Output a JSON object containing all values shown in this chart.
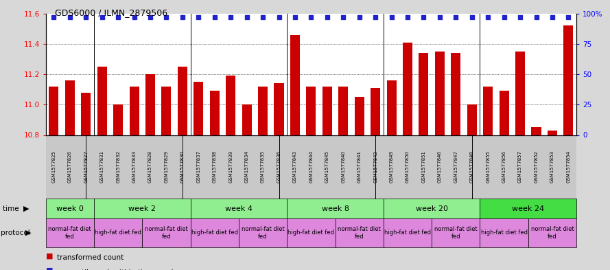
{
  "title": "GDS6000 / ILMN_2879506",
  "samples": [
    "GSM1577825",
    "GSM1577826",
    "GSM1577827",
    "GSM1577831",
    "GSM1577832",
    "GSM1577833",
    "GSM1577828",
    "GSM1577829",
    "GSM1577830",
    "GSM1577837",
    "GSM1577838",
    "GSM1577839",
    "GSM1577834",
    "GSM1577835",
    "GSM1577836",
    "GSM1577843",
    "GSM1577844",
    "GSM1577845",
    "GSM1577840",
    "GSM1577841",
    "GSM1577842",
    "GSM1577849",
    "GSM1577850",
    "GSM1577851",
    "GSM1577846",
    "GSM1577847",
    "GSM1577848",
    "GSM1577855",
    "GSM1577856",
    "GSM1577857",
    "GSM1577852",
    "GSM1577853",
    "GSM1577854"
  ],
  "values": [
    11.12,
    11.16,
    11.08,
    11.25,
    11.0,
    11.12,
    11.2,
    11.12,
    11.25,
    11.15,
    11.09,
    11.19,
    11.0,
    11.12,
    11.14,
    11.46,
    11.12,
    11.12,
    11.12,
    11.05,
    11.11,
    11.16,
    11.41,
    11.34,
    11.35,
    11.34,
    11.0,
    11.12,
    11.09,
    11.35,
    10.85,
    10.83,
    11.52
  ],
  "ylim_left": [
    10.8,
    11.6
  ],
  "ylim_right": [
    0,
    100
  ],
  "yticks_left": [
    10.8,
    11.0,
    11.2,
    11.4,
    11.6
  ],
  "yticks_right": [
    0,
    25,
    50,
    75,
    100
  ],
  "bar_color": "#cc0000",
  "dot_color": "#2222cc",
  "background_color": "#d8d8d8",
  "plot_bg": "#ffffff",
  "tick_area_bg": "#c8c8c8",
  "time_row_colors": [
    "#90ee90",
    "#90ee90",
    "#90ee90",
    "#90ee90",
    "#90ee90",
    "#44dd44"
  ],
  "protocol_color": "#dd88dd",
  "time_groups": [
    {
      "label": "week 0",
      "start": 0,
      "end": 2
    },
    {
      "label": "week 2",
      "start": 3,
      "end": 8
    },
    {
      "label": "week 4",
      "start": 9,
      "end": 14
    },
    {
      "label": "week 8",
      "start": 15,
      "end": 20
    },
    {
      "label": "week 20",
      "start": 21,
      "end": 26
    },
    {
      "label": "week 24",
      "start": 27,
      "end": 32
    }
  ],
  "protocol_groups": [
    {
      "label": "normal-fat diet\nfed",
      "start": 0,
      "end": 2
    },
    {
      "label": "high-fat diet fed",
      "start": 3,
      "end": 5
    },
    {
      "label": "normal-fat diet\nfed",
      "start": 6,
      "end": 8
    },
    {
      "label": "high-fat diet fed",
      "start": 9,
      "end": 11
    },
    {
      "label": "normal-fat diet\nfed",
      "start": 12,
      "end": 14
    },
    {
      "label": "high-fat diet fed",
      "start": 15,
      "end": 17
    },
    {
      "label": "normal-fat diet\nfed",
      "start": 18,
      "end": 20
    },
    {
      "label": "high-fat diet fed",
      "start": 21,
      "end": 23
    },
    {
      "label": "normal-fat diet\nfed",
      "start": 24,
      "end": 26
    },
    {
      "label": "high-fat diet fed",
      "start": 27,
      "end": 29
    },
    {
      "label": "normal-fat diet\nfed",
      "start": 30,
      "end": 32
    }
  ]
}
